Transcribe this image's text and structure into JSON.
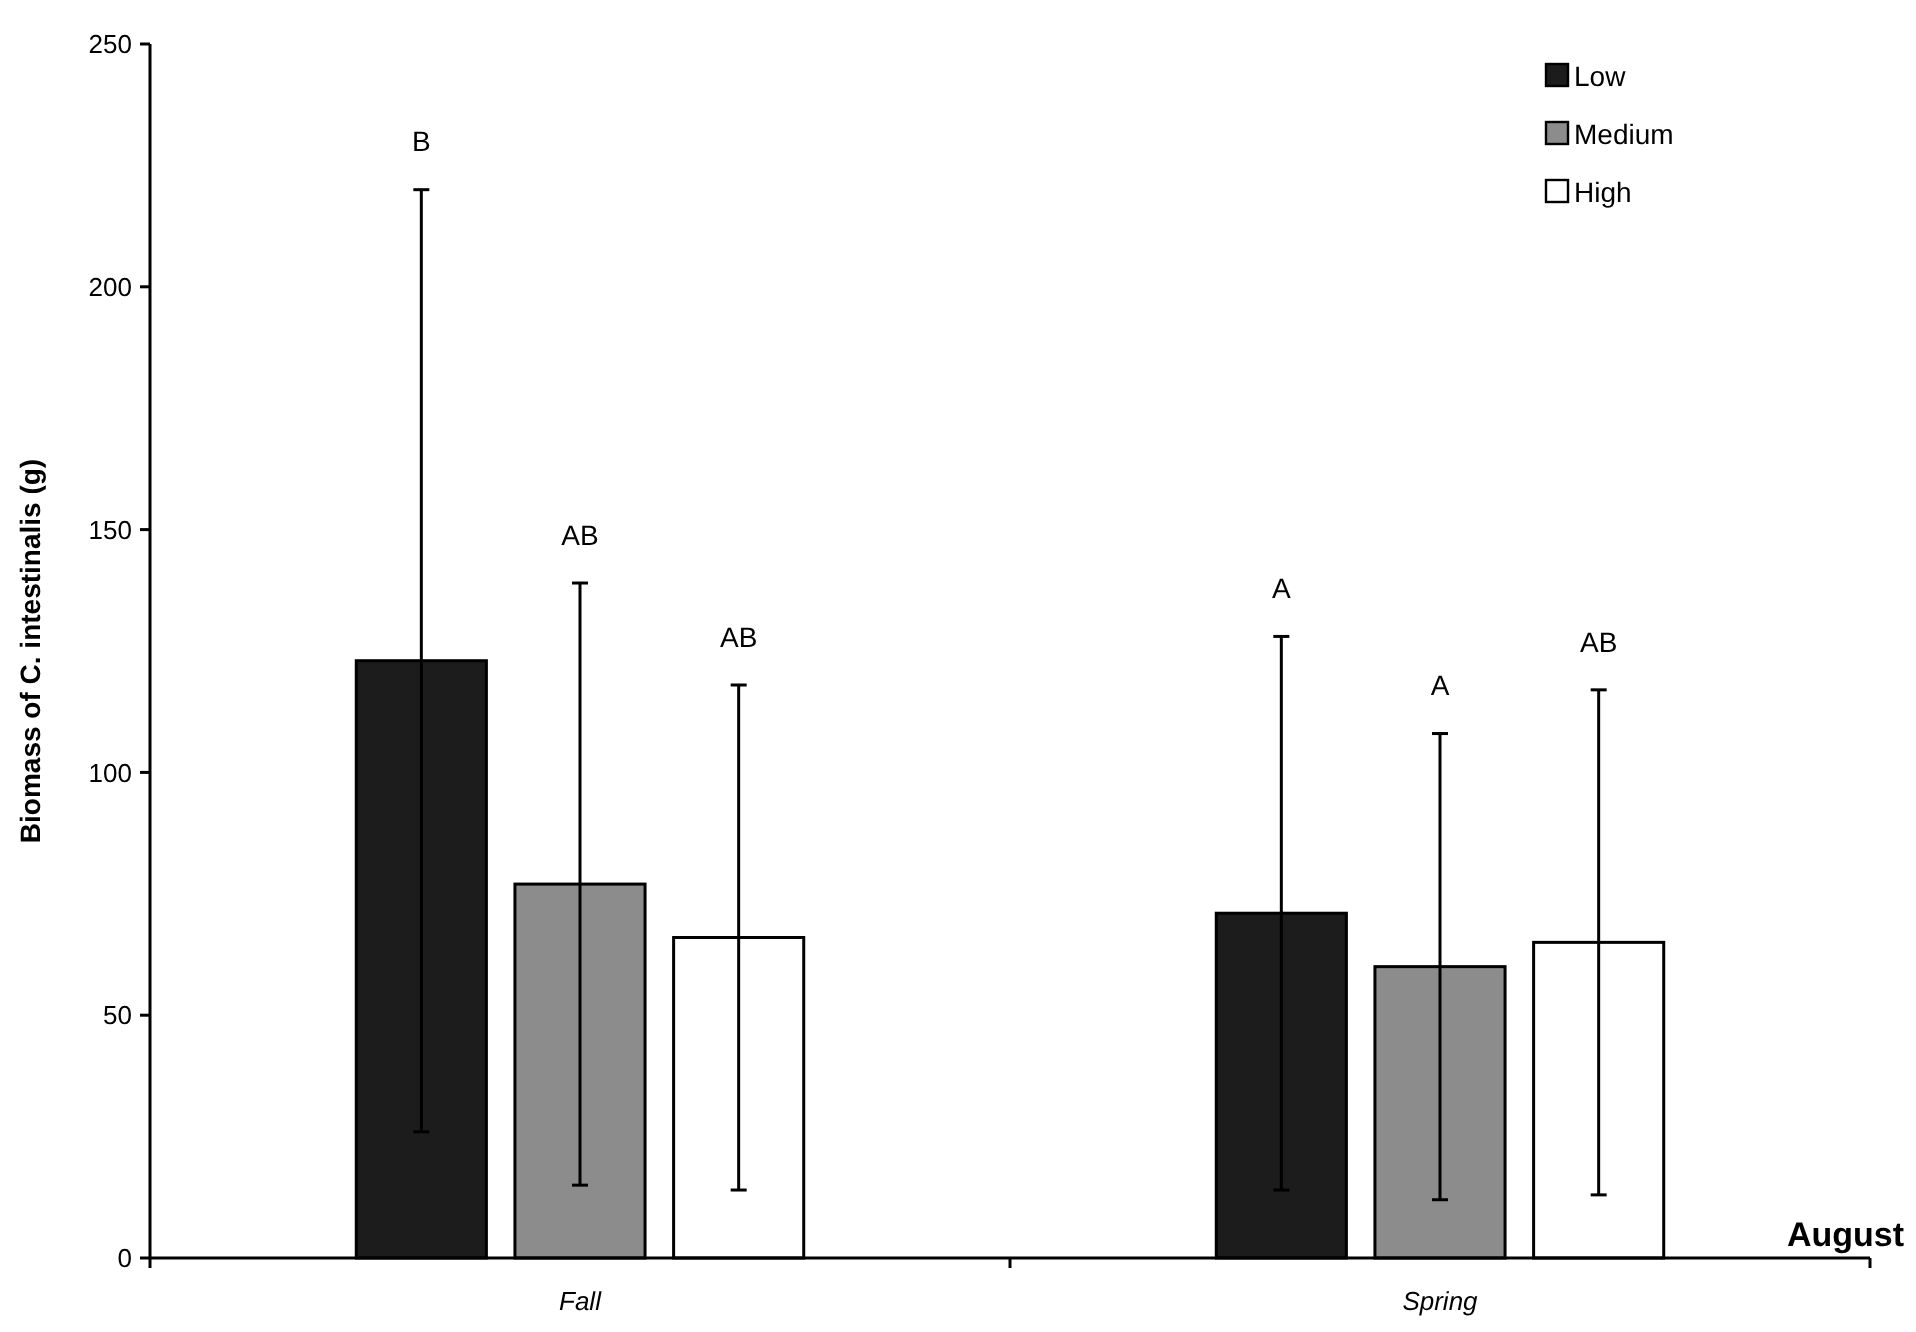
{
  "chart_data": {
    "type": "bar",
    "ylabel": "Biomass of C. intestinalis (g)",
    "categories": [
      "Fall",
      "Spring"
    ],
    "series": [
      {
        "name": "Low",
        "color": "#1c1c1c",
        "values": [
          123,
          71
        ],
        "errors": [
          97,
          57
        ]
      },
      {
        "name": "Medium",
        "color": "#8c8c8c",
        "values": [
          77,
          60
        ],
        "errors": [
          62,
          48
        ]
      },
      {
        "name": "High",
        "color": "#ffffff",
        "values": [
          66,
          65
        ],
        "errors": [
          52,
          52
        ]
      }
    ],
    "ylim": [
      0,
      250
    ],
    "yticks": [
      0,
      50,
      100,
      150,
      200,
      250
    ],
    "grid": false,
    "legend": "top right",
    "annotations": [
      "B",
      "AB",
      "AB",
      "A",
      "A",
      "AB",
      "August"
    ]
  }
}
